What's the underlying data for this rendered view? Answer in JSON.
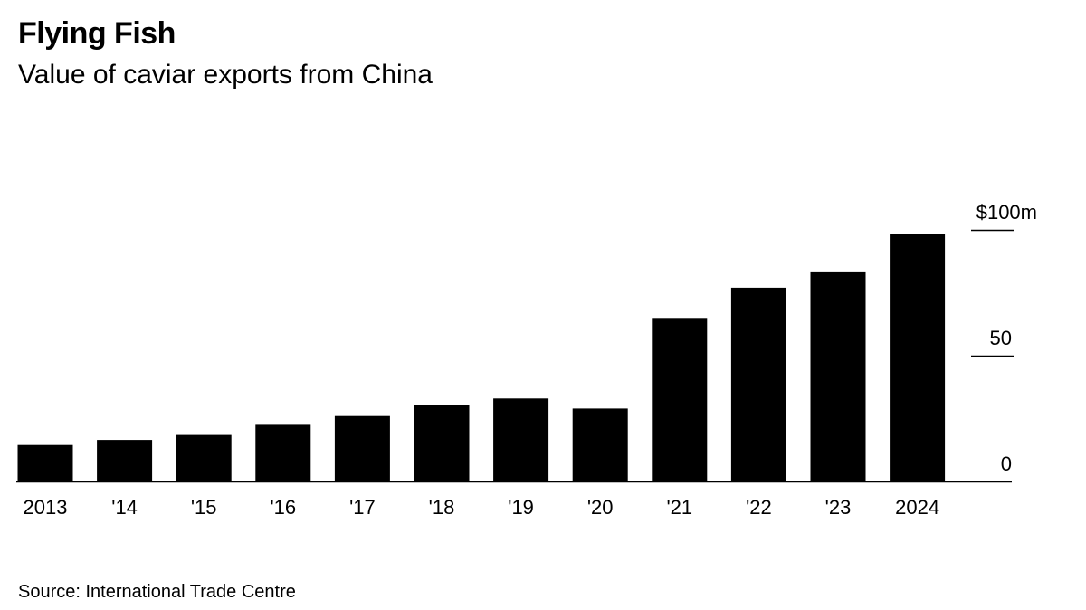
{
  "header": {
    "title": "Flying Fish",
    "subtitle": "Value of caviar exports from China"
  },
  "footer": {
    "source": "Source: International Trade Centre"
  },
  "colors": {
    "bar": "#000000",
    "axis": "#000000",
    "background": "#ffffff"
  },
  "chart_data": {
    "type": "bar",
    "title": "Flying Fish",
    "subtitle": "Value of caviar exports from China",
    "xlabel": "",
    "ylabel": "",
    "categories": [
      "2013",
      "'14",
      "'15",
      "'16",
      "'17",
      "'18",
      "'19",
      "'20",
      "'21",
      "'22",
      "'23",
      "2024"
    ],
    "series": [
      {
        "name": "Value of caviar exports ($m)",
        "values": [
          14.5,
          16.5,
          18.5,
          22.5,
          26,
          30.5,
          33,
          29,
          65,
          77,
          83.5,
          98.5
        ]
      }
    ],
    "ylim": [
      0,
      100
    ],
    "yticks": [
      0,
      50,
      100
    ],
    "ytick_labels": [
      "0",
      "50",
      "$100m"
    ],
    "grid": false,
    "legend": "none",
    "source": "Source: International Trade Centre"
  }
}
